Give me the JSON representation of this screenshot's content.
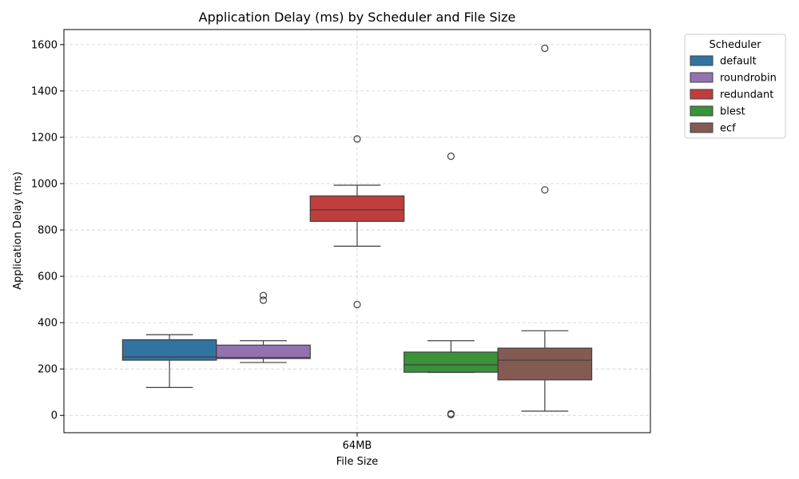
{
  "chart_data": {
    "type": "box",
    "title": "Application Delay (ms) by Scheduler and File Size",
    "xlabel": "File Size",
    "ylabel": "Application Delay (ms)",
    "categories": [
      "64MB"
    ],
    "ylim": [
      -75,
      1665
    ],
    "yticks": [
      0,
      200,
      400,
      600,
      800,
      1000,
      1200,
      1400,
      1600
    ],
    "grid": true,
    "legend": {
      "title": "Scheduler",
      "placement": "outside-right-top"
    },
    "series": [
      {
        "name": "default",
        "color": "#3274a1",
        "whisker_low": 120,
        "q1": 238,
        "median": 252,
        "q3": 326,
        "whisker_high": 348,
        "outliers": []
      },
      {
        "name": "roundrobin",
        "color": "#9372b2",
        "whisker_low": 228,
        "q1": 245,
        "median": 250,
        "q3": 303,
        "whisker_high": 322,
        "outliers": [
          497,
          517
        ]
      },
      {
        "name": "redundant",
        "color": "#c03d3e",
        "whisker_low": 730,
        "q1": 837,
        "median": 887,
        "q3": 947,
        "whisker_high": 993,
        "outliers": [
          478,
          1193
        ]
      },
      {
        "name": "blest",
        "color": "#3a923a",
        "whisker_low": 185,
        "q1": 186,
        "median": 218,
        "q3": 273,
        "whisker_high": 322,
        "outliers": [
          3,
          7,
          1118
        ]
      },
      {
        "name": "ecf",
        "color": "#845b53",
        "whisker_low": 18,
        "q1": 153,
        "median": 238,
        "q3": 290,
        "whisker_high": 365,
        "outliers": [
          973,
          1584
        ]
      }
    ]
  }
}
